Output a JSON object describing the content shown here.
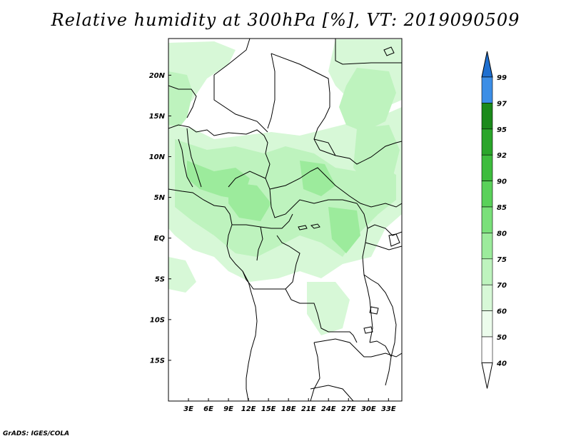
{
  "title": "Relative humidity at 300hPa [%], VT: 2019090509",
  "credit": "GrADS: IGES/COLA",
  "map": {
    "lat_ticks": [
      "20N",
      "15N",
      "10N",
      "5N",
      "EQ",
      "5S",
      "10S",
      "15S"
    ],
    "lon_ticks": [
      "3E",
      "6E",
      "9E",
      "12E",
      "15E",
      "18E",
      "21E",
      "24E",
      "27E",
      "30E",
      "33E"
    ],
    "lon_range": [
      0,
      35
    ],
    "lat_range": [
      -20,
      24.5
    ]
  },
  "colorbar": {
    "levels": [
      "99",
      "97",
      "95",
      "92",
      "90",
      "85",
      "80",
      "75",
      "70",
      "60",
      "50",
      "40"
    ],
    "colors": {
      "99": "#1e6fd0",
      "97": "#3c8ee6",
      "95": "#1b8a1b",
      "92": "#2aa52a",
      "90": "#3dbc3d",
      "85": "#5ad15a",
      "80": "#7ae07a",
      "75": "#9ceb9c",
      "70": "#bef3be",
      "60": "#d7f8d7",
      "50": "#ecfcec",
      "40": "#ffffff"
    }
  }
}
